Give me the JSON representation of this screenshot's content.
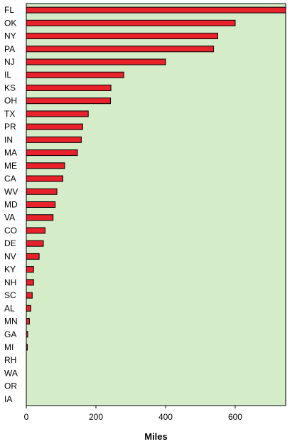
{
  "chart_data": {
    "type": "bar",
    "orientation": "horizontal",
    "categories": [
      "FL",
      "OK",
      "NY",
      "PA",
      "NJ",
      "IL",
      "KS",
      "OH",
      "TX",
      "PR",
      "IN",
      "MA",
      "ME",
      "CA",
      "WV",
      "MD",
      "VA",
      "CO",
      "DE",
      "NV",
      "KY",
      "NH",
      "SC",
      "AL",
      "MN",
      "GA",
      "MI",
      "RH",
      "WA",
      "OR",
      "IA"
    ],
    "values": [
      745,
      600,
      550,
      538,
      400,
      280,
      243,
      242,
      178,
      162,
      158,
      147,
      110,
      105,
      88,
      83,
      77,
      54,
      49,
      37,
      21,
      21,
      17,
      13,
      9,
      4,
      3,
      0,
      0,
      0,
      0
    ],
    "xlabel": "Miles",
    "ylabel": "",
    "xlim": [
      0,
      745
    ],
    "xticks": [
      "0",
      "200",
      "400",
      "600"
    ],
    "xtick_values": [
      0,
      200,
      400,
      600
    ],
    "grid": false,
    "colors": {
      "bar": "#e8222b",
      "plot_bg": "#d4ecc8",
      "outline": "#000000"
    }
  }
}
